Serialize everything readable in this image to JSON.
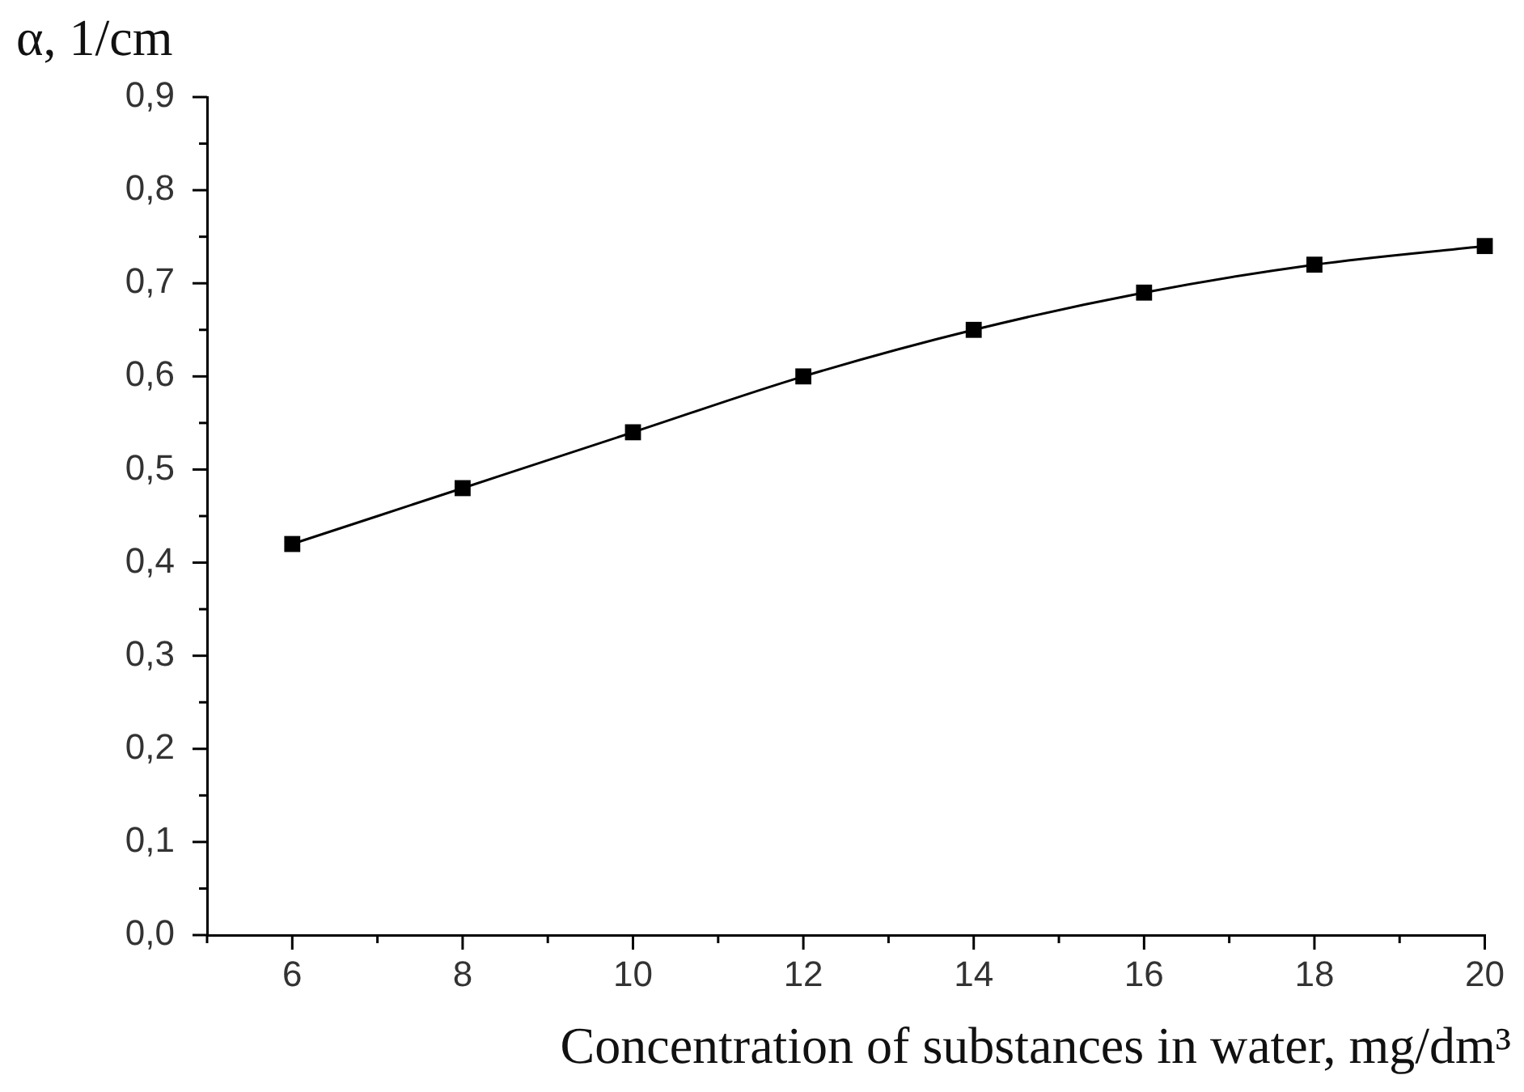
{
  "chart_data": {
    "type": "line",
    "xlabel": "Concentration of substances in water, mg/dm³",
    "ylabel": "α, 1/cm",
    "x": [
      6,
      8,
      10,
      12,
      14,
      16,
      18,
      20
    ],
    "values": [
      0.42,
      0.48,
      0.54,
      0.6,
      0.65,
      0.69,
      0.72,
      0.74
    ],
    "color": "#000000",
    "xlim": [
      5,
      20
    ],
    "xticks": [
      {
        "value": 5,
        "label": null
      },
      6,
      {
        "value": 7,
        "label": null
      },
      8,
      {
        "value": 9,
        "label": null
      },
      10,
      {
        "value": 11,
        "label": null
      },
      12,
      {
        "value": 13,
        "label": null
      },
      14,
      {
        "value": 15,
        "label": null
      },
      16,
      {
        "value": 17,
        "label": null
      },
      18,
      {
        "value": 19,
        "label": null
      },
      20
    ],
    "ylim": [
      0,
      0.9
    ],
    "yticks": [
      {
        "value": 0,
        "label": "0,0"
      },
      {
        "value": 0.05,
        "label": null
      },
      {
        "value": 0.1,
        "label": "0,1"
      },
      {
        "value": 0.15,
        "label": null
      },
      {
        "value": 0.2,
        "label": "0,2"
      },
      {
        "value": 0.25,
        "label": null
      },
      {
        "value": 0.3,
        "label": "0,3"
      },
      {
        "value": 0.35,
        "label": null
      },
      {
        "value": 0.4,
        "label": "0,4"
      },
      {
        "value": 0.45,
        "label": null
      },
      {
        "value": 0.5,
        "label": "0,5"
      },
      {
        "value": 0.55,
        "label": null
      },
      {
        "value": 0.6,
        "label": "0,6"
      },
      {
        "value": 0.65,
        "label": null
      },
      {
        "value": 0.7,
        "label": "0,7"
      },
      {
        "value": 0.75,
        "label": null
      },
      {
        "value": 0.8,
        "label": "0,8"
      },
      {
        "value": 0.85,
        "label": null
      },
      {
        "value": 0.9,
        "label": "0,9"
      }
    ],
    "grid": false,
    "legend": false,
    "marker": "square",
    "line_style": "solid"
  }
}
